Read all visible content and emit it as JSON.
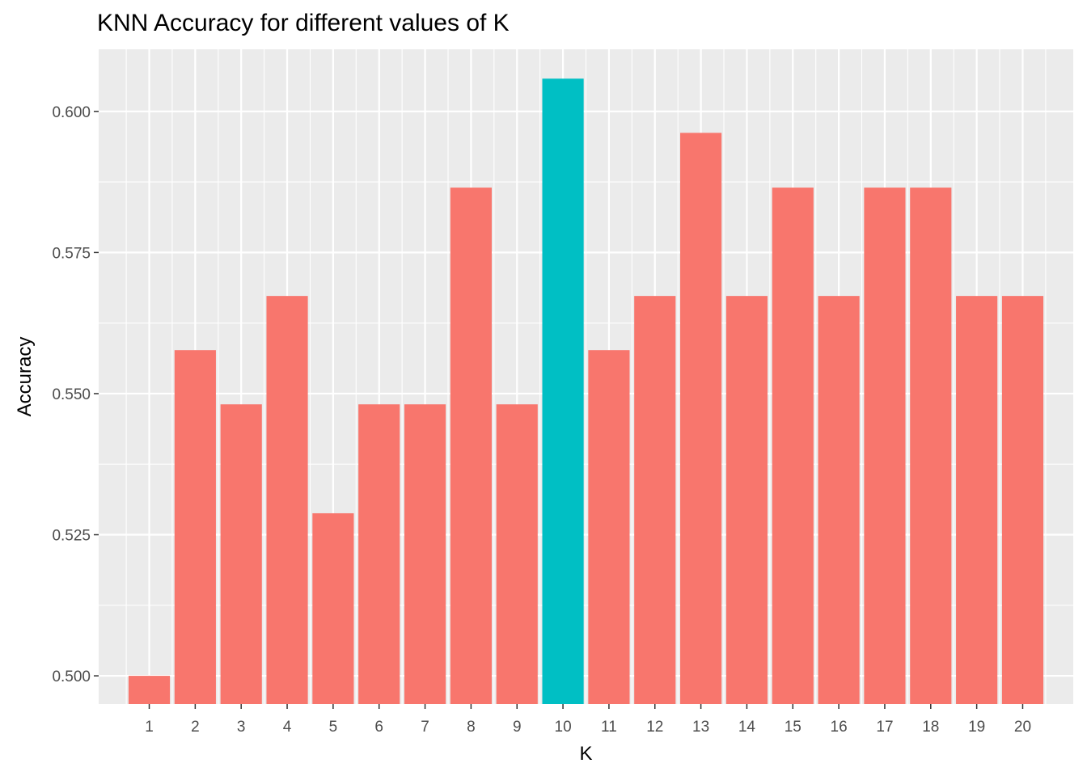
{
  "chart_data": {
    "type": "bar",
    "title": "KNN Accuracy for different values of K",
    "xlabel": "K",
    "ylabel": "Accuracy",
    "categories": [
      "1",
      "2",
      "3",
      "4",
      "5",
      "6",
      "7",
      "8",
      "9",
      "10",
      "11",
      "12",
      "13",
      "14",
      "15",
      "16",
      "17",
      "18",
      "19",
      "20"
    ],
    "values": [
      0.5,
      0.5577,
      0.5481,
      0.5673,
      0.5288,
      0.5481,
      0.5481,
      0.5865,
      0.5481,
      0.6058,
      0.5577,
      0.5673,
      0.5962,
      0.5673,
      0.5865,
      0.5673,
      0.5865,
      0.5865,
      0.5673,
      0.5673
    ],
    "highlight_category": "10",
    "ylim": [
      0.495,
      0.611
    ],
    "yticks": [
      0.5,
      0.525,
      0.55,
      0.575,
      0.6
    ],
    "ytick_labels": [
      "0.500",
      "0.525",
      "0.550",
      "0.575",
      "0.600"
    ],
    "grid": true,
    "legend": "none",
    "colors": {
      "bar": "#F8766D",
      "highlight": "#00BFC4",
      "panel_background": "#EBEBEB",
      "grid": "#FFFFFF"
    }
  }
}
